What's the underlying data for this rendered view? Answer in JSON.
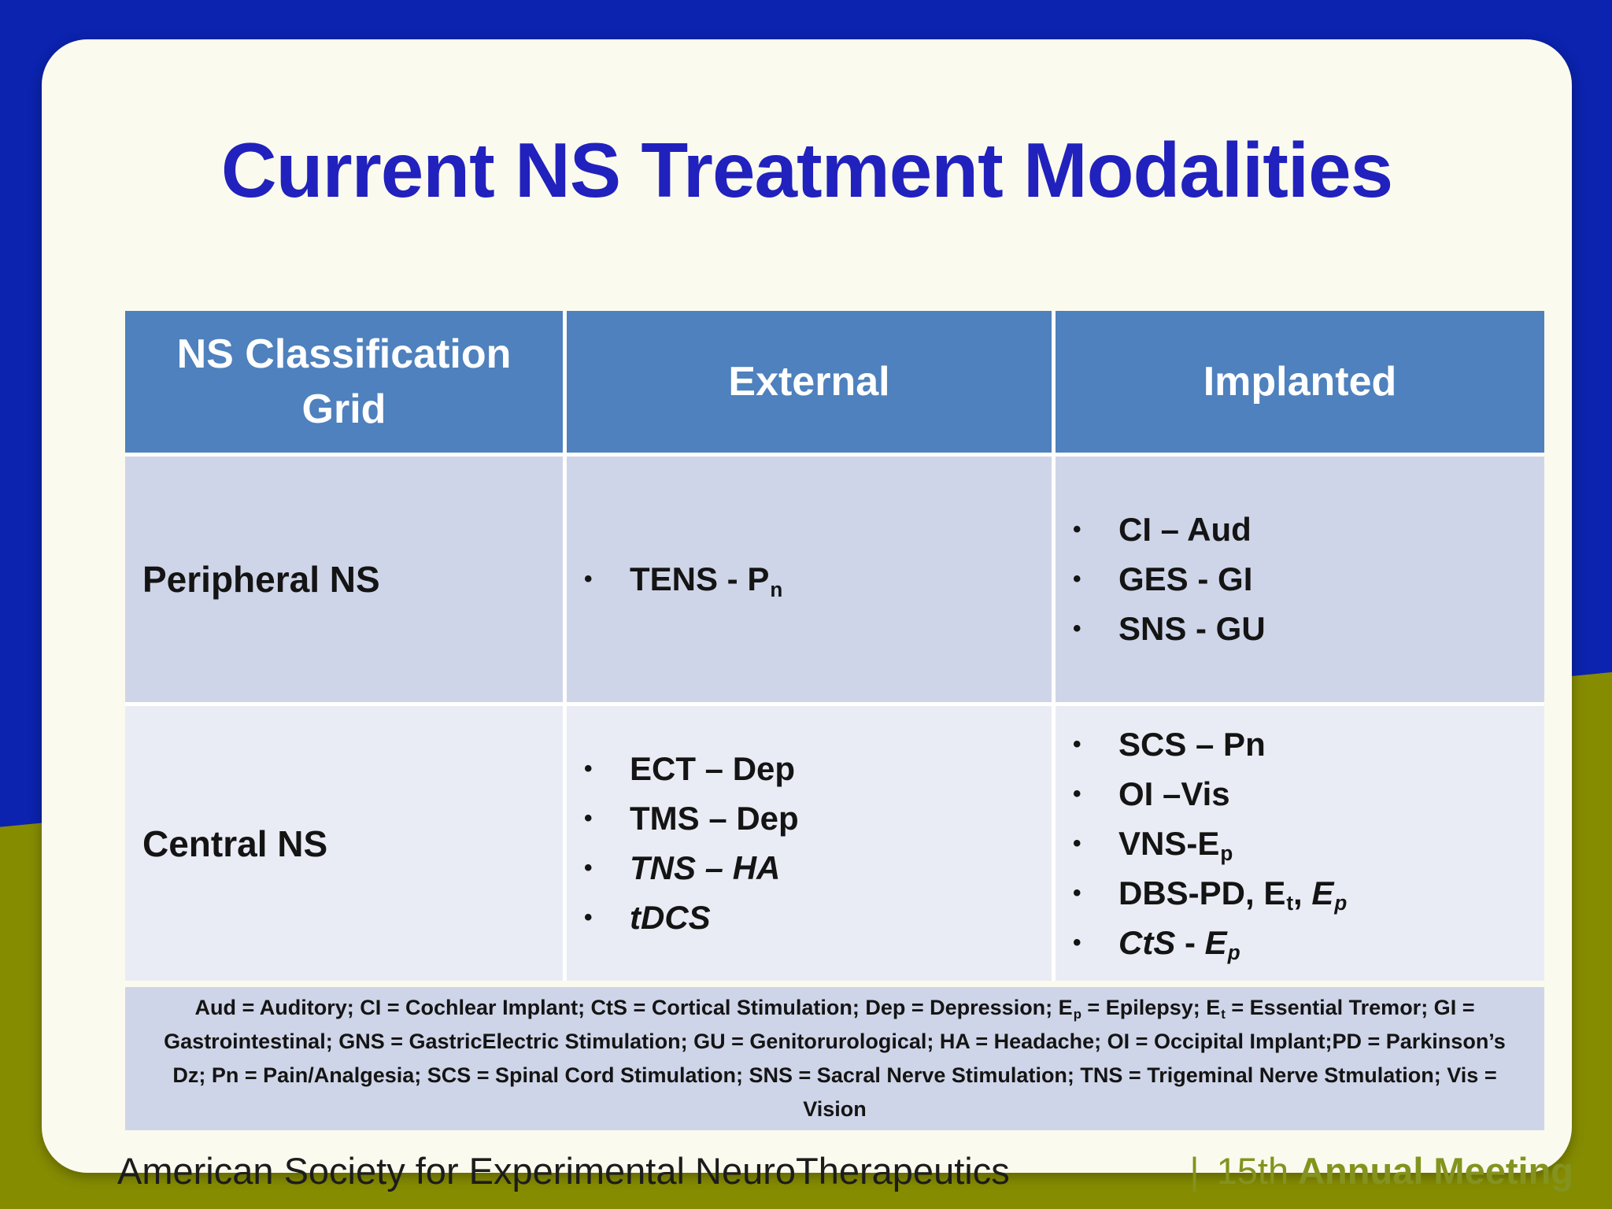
{
  "slide": {
    "title": "Current NS Treatment Modalities"
  },
  "table": {
    "columns": [
      "NS Classification Grid",
      "External",
      "Implanted"
    ],
    "rows": [
      {
        "label": "Peripheral NS",
        "external": [
          [
            {
              "t": "TENS - P"
            },
            {
              "t": "n",
              "sub": true
            }
          ]
        ],
        "implanted": [
          [
            {
              "t": "CI – Aud"
            }
          ],
          [
            {
              "t": "GES - GI"
            }
          ],
          [
            {
              "t": "SNS - GU"
            }
          ]
        ]
      },
      {
        "label": "Central NS",
        "external": [
          [
            {
              "t": "ECT – Dep"
            }
          ],
          [
            {
              "t": "TMS – Dep"
            }
          ],
          [
            {
              "t": "TNS – HA",
              "i": true
            }
          ],
          [
            {
              "t": "tDCS",
              "i": true
            }
          ]
        ],
        "implanted": [
          [
            {
              "t": "SCS – Pn"
            }
          ],
          [
            {
              "t": "OI –Vis"
            }
          ],
          [
            {
              "t": "VNS-E"
            },
            {
              "t": "p",
              "sub": true
            }
          ],
          [
            {
              "t": "DBS-PD, E"
            },
            {
              "t": "t",
              "sub": true
            },
            {
              "t": ", "
            },
            {
              "t": "E",
              "i": true
            },
            {
              "t": "p",
              "sub": true,
              "i": true
            }
          ],
          [
            {
              "t": "CtS",
              "i": true
            },
            {
              "t": " - "
            },
            {
              "t": "E",
              "i": true
            },
            {
              "t": "p",
              "sub": true,
              "i": true
            }
          ]
        ]
      }
    ],
    "footnote": [
      {
        "t": "Aud = Auditory; CI = Cochlear Implant; CtS = Cortical Stimulation; Dep = Depression; E"
      },
      {
        "t": "p",
        "sub": true
      },
      {
        "t": " = Epilepsy; E"
      },
      {
        "t": "t",
        "sub": true
      },
      {
        "t": " = Essential Tremor; GI = Gastrointestinal; GNS = GastricElectric Stimulation; GU = Genitorurological; HA = Headache; OI = Occipital Implant;PD = Parkinson’s Dz; Pn = Pain/Analgesia; SCS = Spinal Cord Stimulation; SNS = Sacral Nerve Stimulation; TNS = Trigeminal Nerve Stmulation; Vis = Vision"
      }
    ]
  },
  "footer": {
    "org": "American Society for Experimental NeuroTherapeutics",
    "divider": "|",
    "meeting_prefix": "15th",
    "meeting_name": "Annual Meeting"
  },
  "colors": {
    "outer_blue": "#0B23AE",
    "olive": "#868C00",
    "card_bg": "#FBFAEE",
    "header_bg": "#4E81BD",
    "row_odd_bg": "#CFD5E8",
    "row_even_bg": "#E9ECF4",
    "title_blue": "#2121BE",
    "footer_accent": "#84931E"
  }
}
